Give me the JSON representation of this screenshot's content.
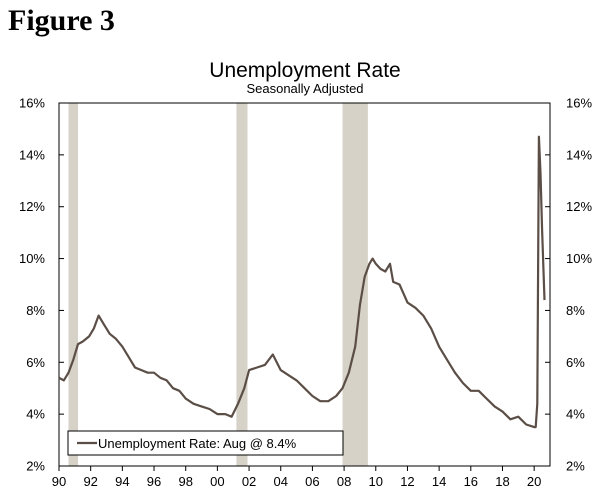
{
  "figure_label": "Figure 3",
  "chart_data": {
    "type": "line",
    "title": "Unemployment Rate",
    "subtitle": "Seasonally Adjusted",
    "x_range": [
      1990,
      2021
    ],
    "ylim": [
      2,
      16
    ],
    "y_ticks": [
      2,
      4,
      6,
      8,
      10,
      12,
      14,
      16
    ],
    "y_tick_labels": [
      "2%",
      "4%",
      "6%",
      "8%",
      "10%",
      "12%",
      "14%",
      "16%"
    ],
    "right_axis_labels": true,
    "x_ticks": [
      1990,
      1992,
      1994,
      1996,
      1998,
      2000,
      2002,
      2004,
      2006,
      2008,
      2010,
      2012,
      2014,
      2016,
      2018,
      2020
    ],
    "x_tick_labels": [
      "90",
      "92",
      "94",
      "96",
      "98",
      "00",
      "02",
      "04",
      "06",
      "08",
      "10",
      "12",
      "14",
      "16",
      "18",
      "20"
    ],
    "grid": false,
    "legend": {
      "placement": "bottom-left",
      "label": "Unemployment Rate: Aug @ 8.4%"
    },
    "recessions": [
      [
        1990.6,
        1991.2
      ],
      [
        2001.2,
        2001.9
      ],
      [
        2007.9,
        2009.5
      ]
    ],
    "series": [
      {
        "name": "Unemployment Rate: Aug @ 8.4%",
        "color": "#5b4e46",
        "points": [
          [
            1990.0,
            5.4
          ],
          [
            1990.3,
            5.3
          ],
          [
            1990.6,
            5.6
          ],
          [
            1990.9,
            6.1
          ],
          [
            1991.2,
            6.7
          ],
          [
            1991.5,
            6.8
          ],
          [
            1991.9,
            7.0
          ],
          [
            1992.2,
            7.3
          ],
          [
            1992.5,
            7.8
          ],
          [
            1992.8,
            7.5
          ],
          [
            1993.2,
            7.1
          ],
          [
            1993.6,
            6.9
          ],
          [
            1994.0,
            6.6
          ],
          [
            1994.4,
            6.2
          ],
          [
            1994.8,
            5.8
          ],
          [
            1995.2,
            5.7
          ],
          [
            1995.6,
            5.6
          ],
          [
            1996.0,
            5.6
          ],
          [
            1996.4,
            5.4
          ],
          [
            1996.8,
            5.3
          ],
          [
            1997.2,
            5.0
          ],
          [
            1997.6,
            4.9
          ],
          [
            1998.0,
            4.6
          ],
          [
            1998.5,
            4.4
          ],
          [
            1999.0,
            4.3
          ],
          [
            1999.5,
            4.2
          ],
          [
            2000.0,
            4.0
          ],
          [
            2000.5,
            4.0
          ],
          [
            2000.9,
            3.9
          ],
          [
            2001.3,
            4.4
          ],
          [
            2001.7,
            5.0
          ],
          [
            2002.0,
            5.7
          ],
          [
            2002.5,
            5.8
          ],
          [
            2003.0,
            5.9
          ],
          [
            2003.5,
            6.3
          ],
          [
            2004.0,
            5.7
          ],
          [
            2004.5,
            5.5
          ],
          [
            2005.0,
            5.3
          ],
          [
            2005.5,
            5.0
          ],
          [
            2006.0,
            4.7
          ],
          [
            2006.5,
            4.5
          ],
          [
            2007.0,
            4.5
          ],
          [
            2007.5,
            4.7
          ],
          [
            2007.9,
            5.0
          ],
          [
            2008.3,
            5.6
          ],
          [
            2008.7,
            6.6
          ],
          [
            2009.0,
            8.2
          ],
          [
            2009.3,
            9.3
          ],
          [
            2009.6,
            9.8
          ],
          [
            2009.8,
            10.0
          ],
          [
            2010.0,
            9.8
          ],
          [
            2010.3,
            9.6
          ],
          [
            2010.6,
            9.5
          ],
          [
            2010.9,
            9.8
          ],
          [
            2011.1,
            9.1
          ],
          [
            2011.5,
            9.0
          ],
          [
            2012.0,
            8.3
          ],
          [
            2012.5,
            8.1
          ],
          [
            2013.0,
            7.8
          ],
          [
            2013.5,
            7.3
          ],
          [
            2014.0,
            6.6
          ],
          [
            2014.5,
            6.1
          ],
          [
            2015.0,
            5.6
          ],
          [
            2015.5,
            5.2
          ],
          [
            2016.0,
            4.9
          ],
          [
            2016.5,
            4.9
          ],
          [
            2017.0,
            4.6
          ],
          [
            2017.5,
            4.3
          ],
          [
            2018.0,
            4.1
          ],
          [
            2018.5,
            3.8
          ],
          [
            2019.0,
            3.9
          ],
          [
            2019.5,
            3.6
          ],
          [
            2020.0,
            3.5
          ],
          [
            2020.1,
            3.5
          ],
          [
            2020.2,
            4.4
          ],
          [
            2020.3,
            14.7
          ],
          [
            2020.4,
            13.3
          ],
          [
            2020.5,
            11.1
          ],
          [
            2020.55,
            10.2
          ],
          [
            2020.65,
            8.4
          ]
        ]
      }
    ]
  }
}
